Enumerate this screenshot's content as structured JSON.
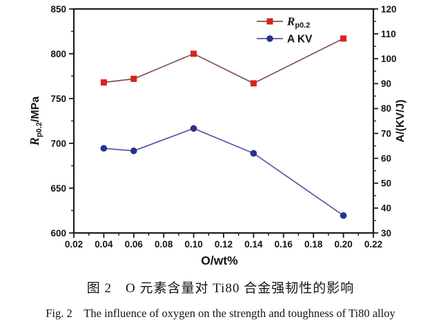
{
  "figure": {
    "caption_zh": "图 2　O 元素含量对 Ti80 合金强韧性的影响",
    "caption_en": "Fig. 2　The influence of oxygen on the strength and toughness of Ti80 alloy"
  },
  "chart_data": {
    "type": "line",
    "x": [
      0.04,
      0.06,
      0.1,
      0.14,
      0.2
    ],
    "series": [
      {
        "name": "Rp0.2",
        "legend_main": "R",
        "legend_sub": "p0.2",
        "axis": "left",
        "values": [
          768,
          772,
          800,
          767,
          817
        ],
        "marker": "square",
        "marker_color": "#d8231f",
        "line_color": "#82524a"
      },
      {
        "name": "A KV",
        "legend_main": "A KV",
        "legend_sub": "",
        "axis": "right",
        "values": [
          64,
          63,
          72,
          62,
          37
        ],
        "marker": "circle",
        "marker_color": "#28328e",
        "line_color": "#5d55a3"
      }
    ],
    "xlabel": "O/wt%",
    "ylabel_left_italic": "R",
    "ylabel_left_sub": "p0.2",
    "ylabel_left_rest": "/MPa",
    "ylabel_right": "A/(KV/J)",
    "xlim": [
      0.02,
      0.22
    ],
    "xtick_labels": [
      "0.02",
      "0.04",
      "0.06",
      "0.08",
      "0.10",
      "0.12",
      "0.14",
      "0.16",
      "0.18",
      "0.20",
      "0.22"
    ],
    "ylim_left": [
      600,
      850
    ],
    "ytick_labels_left": [
      "600",
      "650",
      "700",
      "750",
      "800",
      "850"
    ],
    "ylim_right": [
      30,
      120
    ],
    "ytick_labels_right": [
      "30",
      "40",
      "50",
      "60",
      "70",
      "80",
      "90",
      "100",
      "110",
      "120"
    ],
    "grid": false,
    "legend_position": "top-inside-right",
    "frame_color": "#1c1c1c",
    "text_color": "#141414"
  }
}
